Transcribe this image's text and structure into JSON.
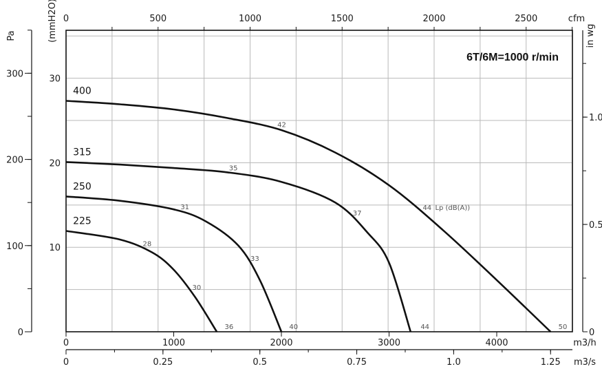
{
  "chart_data": {
    "type": "line",
    "annotation": "6T/6M=1000 r/min",
    "x_bottom_1": {
      "unit": "m3/h",
      "range": [
        0,
        4700
      ],
      "ticks": [
        0,
        1000,
        2000,
        3000,
        4000
      ]
    },
    "x_bottom_2": {
      "unit": "m3/s",
      "ticks": [
        {
          "value": 0,
          "label": "0"
        },
        {
          "value": 0.25,
          "label": "0.25"
        },
        {
          "value": 0.5,
          "label": "0.5"
        },
        {
          "value": 0.75,
          "label": "0.75"
        },
        {
          "value": 1.0,
          "label": "1.0"
        },
        {
          "value": 1.25,
          "label": "1.25"
        }
      ]
    },
    "x_top": {
      "unit": "cfm",
      "ticks": [
        0,
        500,
        1000,
        1500,
        2000,
        2500
      ]
    },
    "y_left_pa": {
      "unit": "Pa",
      "range": [
        0,
        350
      ],
      "ticks": [
        0,
        100,
        200,
        300
      ]
    },
    "y_left_mm": {
      "unit": "(mmH2O)",
      "ticks": [
        10,
        20,
        30
      ]
    },
    "y_right": {
      "unit": "in wg",
      "ticks": [
        {
          "value": 0,
          "label": "0"
        },
        {
          "value": 0.5,
          "label": "0.5"
        },
        {
          "value": 1.0,
          "label": "1.0"
        }
      ]
    },
    "noise_label_suffix": "Lp (dB(A))",
    "series": [
      {
        "name": "400",
        "points": [
          [
            0,
            268
          ],
          [
            500,
            264
          ],
          [
            1000,
            258
          ],
          [
            1500,
            248
          ],
          [
            2000,
            234
          ],
          [
            2500,
            208
          ],
          [
            3000,
            170
          ],
          [
            3500,
            118
          ],
          [
            4000,
            60
          ],
          [
            4500,
            0
          ]
        ],
        "noise": [
          {
            "x": 1950,
            "label": "42"
          },
          {
            "x": 3300,
            "label": "44"
          },
          {
            "x": 4560,
            "label": "50"
          }
        ]
      },
      {
        "name": "315",
        "points": [
          [
            0,
            197
          ],
          [
            500,
            194
          ],
          [
            1000,
            190
          ],
          [
            1500,
            185
          ],
          [
            2000,
            174
          ],
          [
            2500,
            150
          ],
          [
            2800,
            115
          ],
          [
            3000,
            80
          ],
          [
            3200,
            0
          ]
        ],
        "noise": [
          {
            "x": 1500,
            "label": "35"
          },
          {
            "x": 2650,
            "label": "37"
          },
          {
            "x": 3280,
            "label": "44"
          }
        ]
      },
      {
        "name": "250",
        "points": [
          [
            0,
            157
          ],
          [
            500,
            152
          ],
          [
            1000,
            142
          ],
          [
            1300,
            128
          ],
          [
            1600,
            100
          ],
          [
            1800,
            60
          ],
          [
            2000,
            0
          ]
        ],
        "noise": [
          {
            "x": 1050,
            "label": "31"
          },
          {
            "x": 1700,
            "label": "33"
          },
          {
            "x": 2060,
            "label": "40"
          }
        ]
      },
      {
        "name": "225",
        "points": [
          [
            0,
            117
          ],
          [
            500,
            107
          ],
          [
            800,
            92
          ],
          [
            1000,
            72
          ],
          [
            1200,
            40
          ],
          [
            1400,
            0
          ]
        ],
        "noise": [
          {
            "x": 700,
            "label": "28"
          },
          {
            "x": 1160,
            "label": "30"
          },
          {
            "x": 1460,
            "label": "36"
          }
        ]
      }
    ]
  }
}
